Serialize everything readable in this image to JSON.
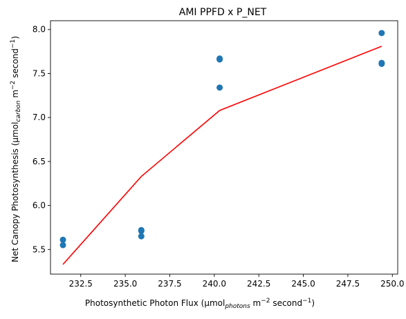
{
  "chart_data": {
    "type": "scatter",
    "title": "AMI PPFD x P_NET",
    "xlabel": {
      "main": "Photosynthetic Photon Flux (μmol",
      "sub": "photons",
      "mid": " m",
      "sup": "−2",
      "end": " second",
      "sup2": "−1",
      "close": ")"
    },
    "ylabel": {
      "main": "Net Canopy Photosynthesis (μmol",
      "sub": "carbon",
      "mid": " m",
      "sup": "−2",
      "end": " second",
      "sup2": "−1",
      "close": ")"
    },
    "xlim": [
      230.8,
      250.3
    ],
    "ylim": [
      5.22,
      8.1
    ],
    "xticks": [
      "232.5",
      "235.0",
      "237.5",
      "240.0",
      "242.5",
      "245.0",
      "247.5",
      "250.0"
    ],
    "yticks": [
      "5.5",
      "6.0",
      "6.5",
      "7.0",
      "7.5",
      "8.0"
    ],
    "series": [
      {
        "kind": "scatter",
        "color": "#1f77b4",
        "points": [
          {
            "x": 231.5,
            "y": 5.61
          },
          {
            "x": 231.5,
            "y": 5.55
          },
          {
            "x": 235.9,
            "y": 5.72
          },
          {
            "x": 235.9,
            "y": 5.71
          },
          {
            "x": 235.9,
            "y": 5.65
          },
          {
            "x": 240.3,
            "y": 7.67
          },
          {
            "x": 240.3,
            "y": 7.66
          },
          {
            "x": 240.3,
            "y": 7.34
          },
          {
            "x": 249.4,
            "y": 7.96
          },
          {
            "x": 249.4,
            "y": 7.62
          },
          {
            "x": 249.4,
            "y": 7.61
          }
        ]
      },
      {
        "kind": "line",
        "color": "#ff0000",
        "points": [
          {
            "x": 231.5,
            "y": 5.33
          },
          {
            "x": 235.9,
            "y": 6.33
          },
          {
            "x": 240.3,
            "y": 7.08
          },
          {
            "x": 249.4,
            "y": 7.81
          }
        ]
      }
    ]
  }
}
